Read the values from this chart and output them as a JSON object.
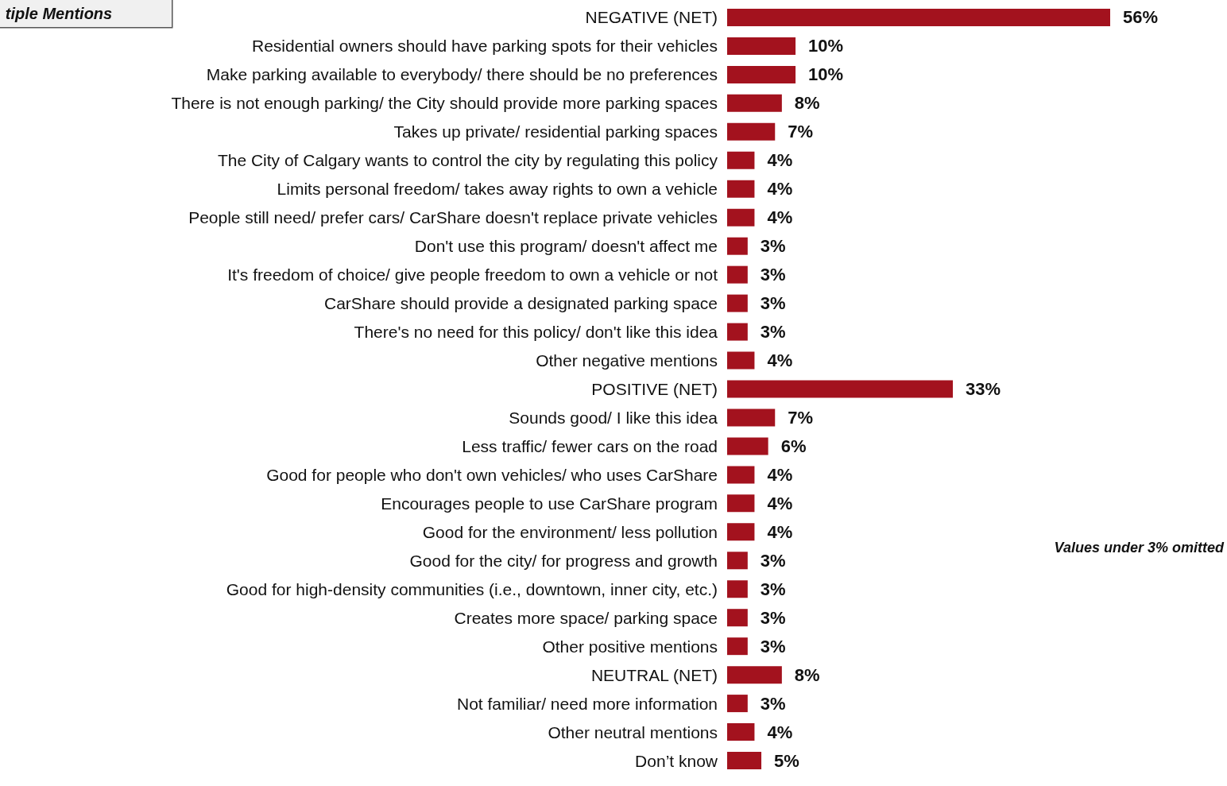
{
  "chart_data": {
    "type": "bar",
    "orientation": "horizontal",
    "color": "#a3121e",
    "categories": [
      "NEGATIVE (NET)",
      "Residential owners should have parking spots for their vehicles",
      "Make parking available to everybody/ there should be no preferences",
      "There is not enough parking/ the City should provide more parking spaces",
      "Takes up private/ residential parking spaces",
      "The City of Calgary wants to control the city by regulating this policy",
      "Limits personal freedom/ takes away rights to own a vehicle",
      "People still need/ prefer cars/ CarShare doesn't replace private vehicles",
      "Don't use this program/ doesn't affect me",
      "It's freedom of choice/ give people freedom to own a vehicle or not",
      "CarShare should provide a designated parking space",
      "There's no need for this policy/ don't like this idea",
      "Other negative mentions",
      "POSITIVE (NET)",
      "Sounds good/ I like this idea",
      "Less traffic/ fewer cars on the road",
      "Good for people who don't own vehicles/ who uses CarShare",
      "Encourages people to use CarShare program",
      "Good for the environment/ less pollution",
      "Good for the city/ for progress and growth",
      "Good for high-density communities (i.e., downtown, inner city, etc.)",
      "Creates more space/ parking space",
      "Other positive mentions",
      "NEUTRAL (NET)",
      "Not familiar/ need more information",
      "Other neutral mentions",
      "Don’t know"
    ],
    "values": [
      56,
      10,
      10,
      8,
      7,
      4,
      4,
      4,
      3,
      3,
      3,
      3,
      4,
      33,
      7,
      6,
      4,
      4,
      4,
      3,
      3,
      3,
      3,
      8,
      3,
      4,
      5
    ],
    "value_labels": [
      "56%",
      "10%",
      "10%",
      "8%",
      "7%",
      "4%",
      "4%",
      "4%",
      "3%",
      "3%",
      "3%",
      "3%",
      "4%",
      "33%",
      "7%",
      "6%",
      "4%",
      "4%",
      "4%",
      "3%",
      "3%",
      "3%",
      "3%",
      "8%",
      "3%",
      "4%",
      "5%"
    ],
    "annotations": [
      "tiple Mentions",
      "Values under 3% omitted"
    ]
  }
}
